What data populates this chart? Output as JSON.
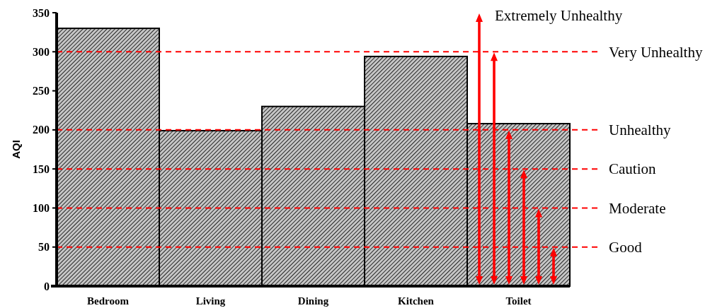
{
  "chart_data": {
    "type": "bar",
    "ylabel": "AQI",
    "categories": [
      "Bedroom",
      "Living",
      "Dining",
      "Kitchen",
      "Toilet"
    ],
    "values": [
      330,
      199,
      230,
      294,
      208
    ],
    "color": "#808080",
    "ylim": [
      0,
      350
    ],
    "yticks": [
      0,
      50,
      100,
      150,
      200,
      250,
      300,
      350
    ],
    "ref_lines": [
      {
        "axis": "y",
        "value": 50,
        "label": "Good",
        "color": "#ff0000",
        "line_style": "dashed"
      },
      {
        "axis": "y",
        "value": 100,
        "label": "Moderate",
        "color": "#ff0000",
        "line_style": "dashed"
      },
      {
        "axis": "y",
        "value": 150,
        "label": "Caution",
        "color": "#ff0000",
        "line_style": "dashed"
      },
      {
        "axis": "y",
        "value": 200,
        "label": "Unhealthy",
        "color": "#ff0000",
        "line_style": "dashed"
      },
      {
        "axis": "y",
        "value": 300,
        "label": "Very Unhealthy",
        "color": "#ff0000",
        "line_style": "dashed"
      }
    ],
    "annotations": [
      "Extremely Unhealthy"
    ]
  }
}
